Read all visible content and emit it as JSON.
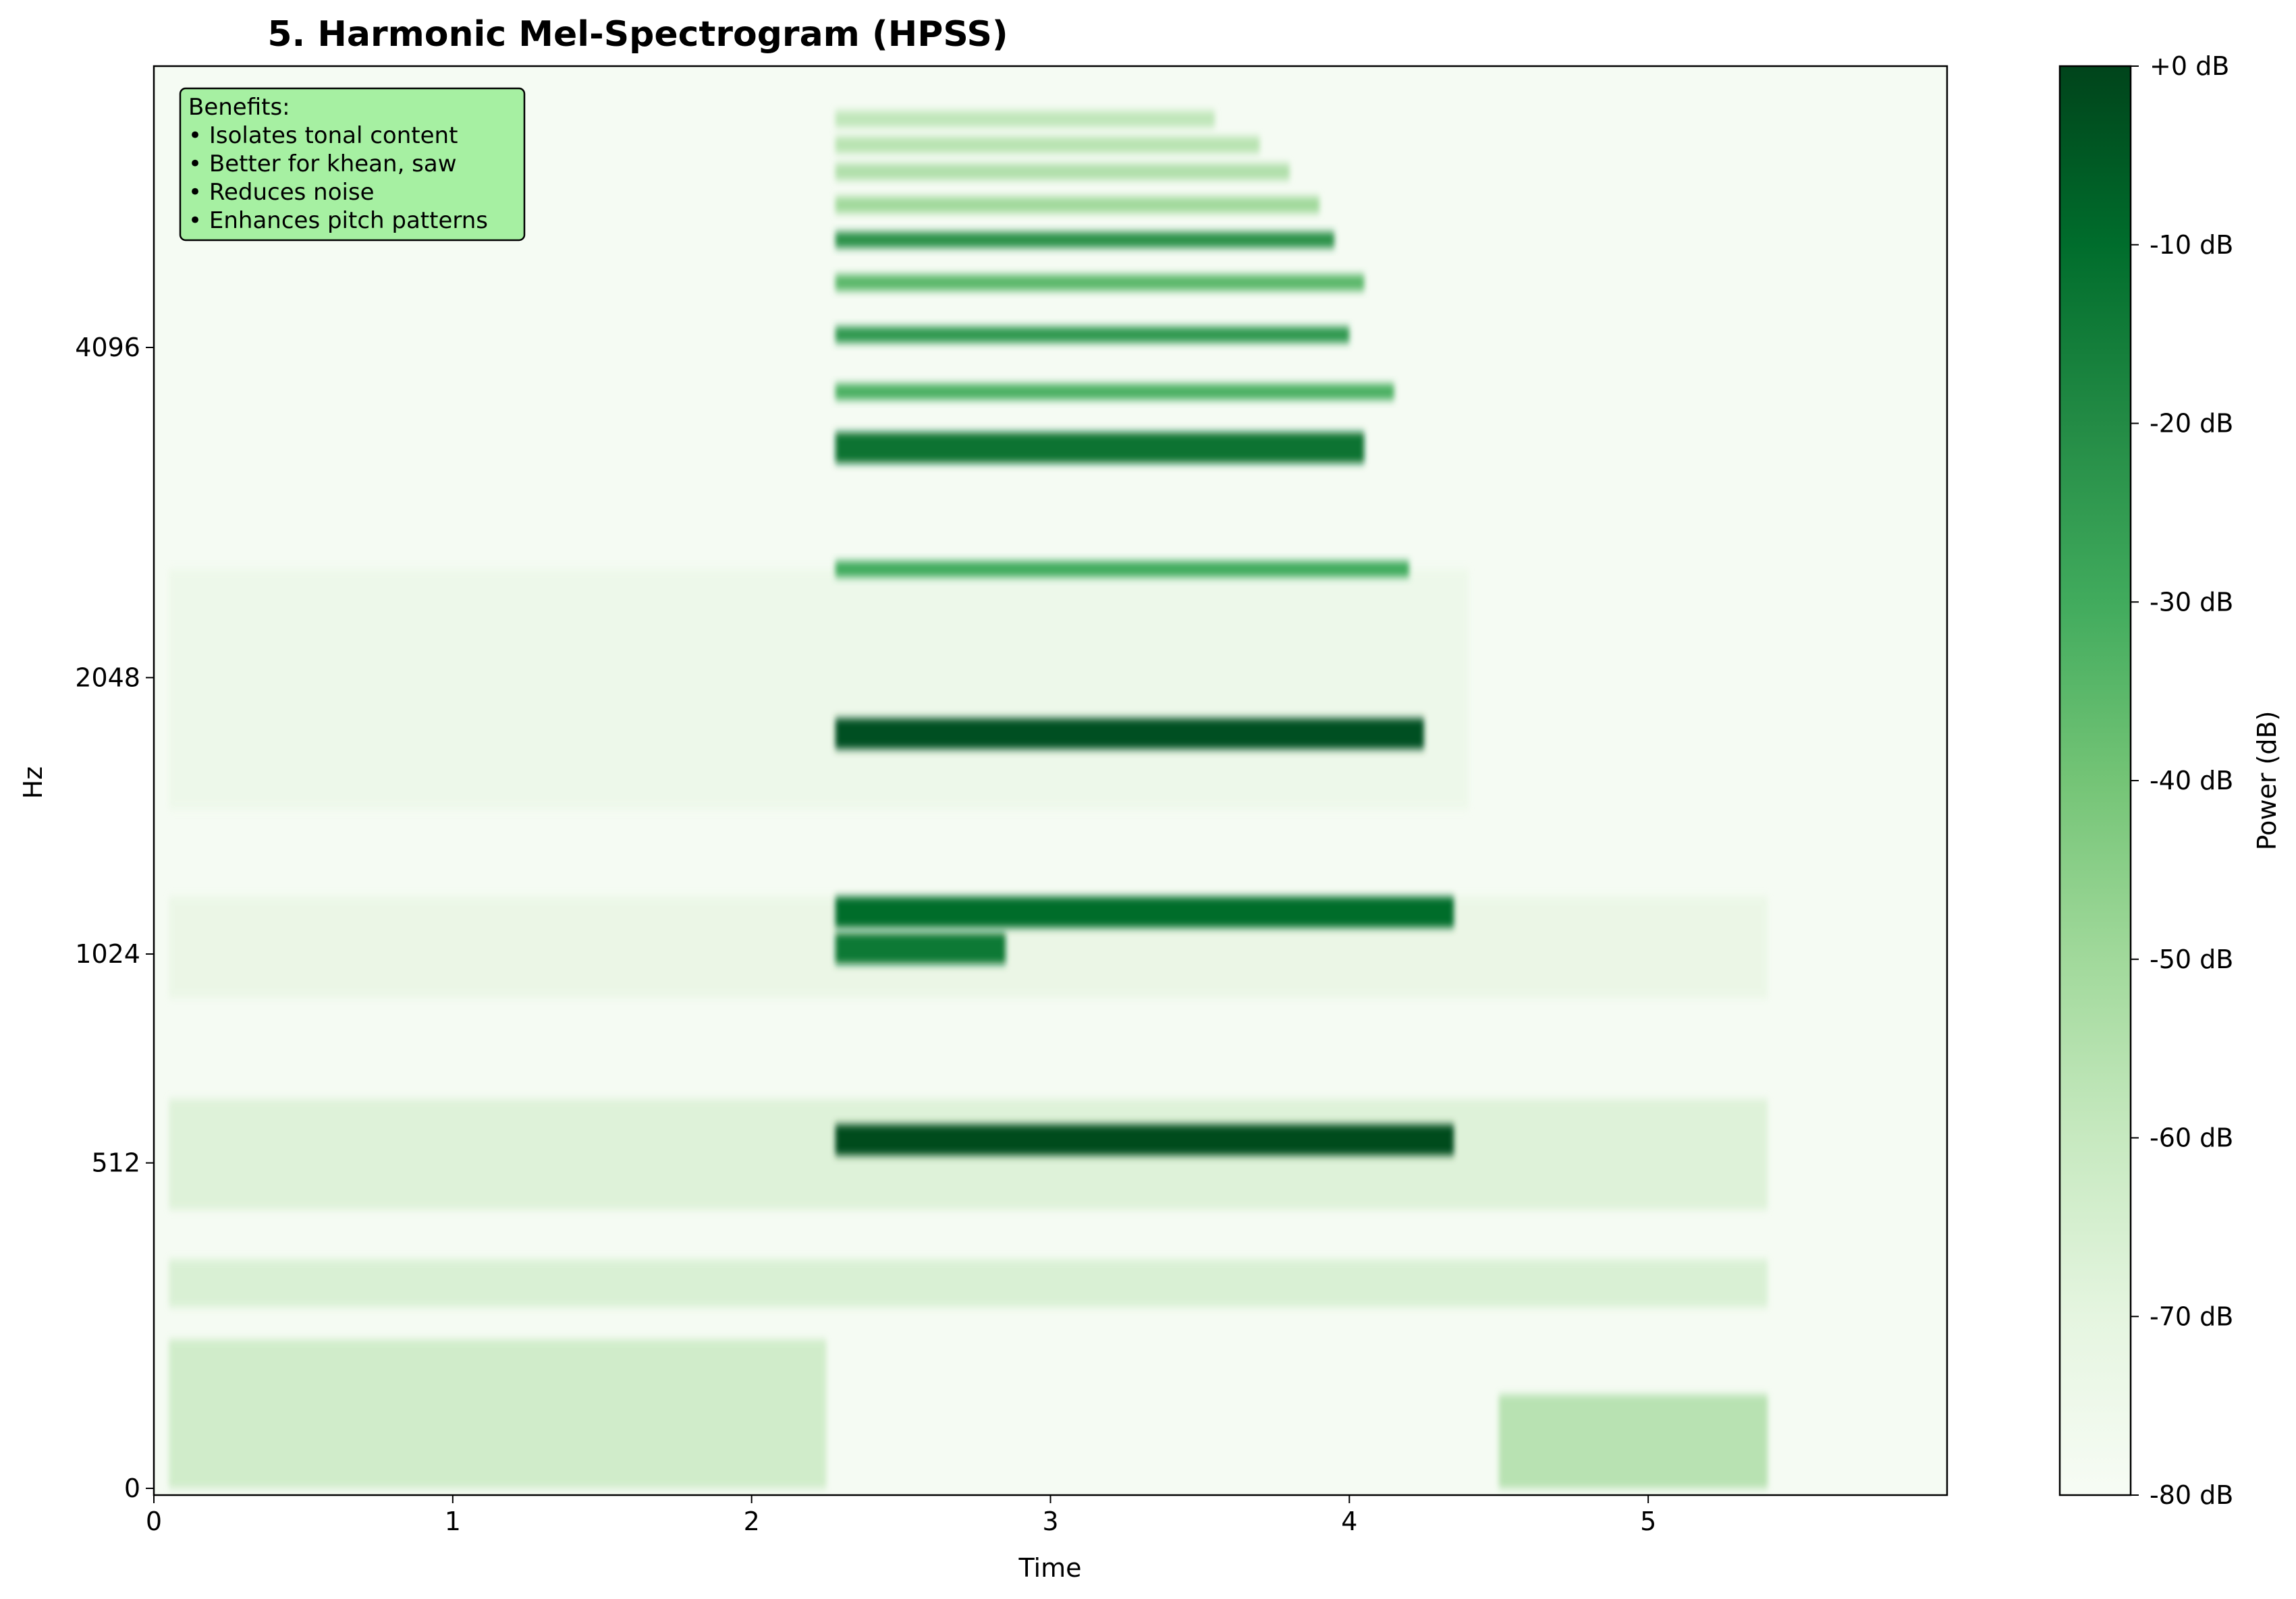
{
  "chart_data": {
    "type": "heatmap",
    "title": "5. Harmonic Mel-Spectrogram (HPSS)",
    "xlabel": "Time",
    "ylabel": "Hz",
    "xlim": [
      0,
      6.0
    ],
    "x_ticks": [
      0,
      1,
      2,
      3,
      4,
      5
    ],
    "y_scale": "mel",
    "y_ticks": [
      0,
      512,
      1024,
      2048,
      4096
    ],
    "grid": false,
    "colormap": "Greens",
    "colorbar": {
      "label": "Power (dB)",
      "range": [
        -80,
        0
      ],
      "ticks": [
        0,
        -10,
        -20,
        -30,
        -40,
        -50,
        -60,
        -70,
        -80
      ],
      "tick_labels": [
        "+0 dB",
        "-10 dB",
        "-20 dB",
        "-30 dB",
        "-40 dB",
        "-50 dB",
        "-60 dB",
        "-70 dB",
        "-80 dB"
      ]
    },
    "annotation": {
      "placement": "top-left",
      "lines": [
        "Benefits:",
        "• Isolates tonal content",
        "• Better for khean, saw",
        "• Reduces noise",
        "• Enhances pitch patterns"
      ]
    },
    "harmonic_bands": [
      {
        "freq_hz": 560,
        "t_start": 2.28,
        "t_end": 4.35,
        "level_db": -2
      },
      {
        "freq_hz": 1040,
        "t_start": 2.28,
        "t_end": 2.85,
        "level_db": -14
      },
      {
        "freq_hz": 1150,
        "t_start": 2.28,
        "t_end": 4.35,
        "level_db": -10
      },
      {
        "freq_hz": 1800,
        "t_start": 2.28,
        "t_end": 4.25,
        "level_db": -3
      },
      {
        "freq_hz": 2600,
        "t_start": 2.28,
        "t_end": 4.2,
        "level_db": -30
      },
      {
        "freq_hz": 3350,
        "t_start": 2.28,
        "t_end": 4.05,
        "level_db": -12
      },
      {
        "freq_hz": 3750,
        "t_start": 2.28,
        "t_end": 4.15,
        "level_db": -32
      },
      {
        "freq_hz": 4200,
        "t_start": 2.28,
        "t_end": 4.0,
        "level_db": -24
      },
      {
        "freq_hz": 4650,
        "t_start": 2.28,
        "t_end": 4.05,
        "level_db": -35
      },
      {
        "freq_hz": 5050,
        "t_start": 2.28,
        "t_end": 3.95,
        "level_db": -22
      },
      {
        "freq_hz": 5400,
        "t_start": 2.28,
        "t_end": 3.9,
        "level_db": -50
      },
      {
        "freq_hz": 5750,
        "t_start": 2.28,
        "t_end": 3.8,
        "level_db": -54
      },
      {
        "freq_hz": 6050,
        "t_start": 2.28,
        "t_end": 3.7,
        "level_db": -56
      },
      {
        "freq_hz": 6350,
        "t_start": 2.28,
        "t_end": 3.55,
        "level_db": -58
      }
    ],
    "noise_regions": [
      {
        "f_lo": 0,
        "f_hi": 200,
        "t_start": 0.05,
        "t_end": 2.25,
        "level_db": -60
      },
      {
        "f_lo": 0,
        "f_hi": 120,
        "t_start": 4.5,
        "t_end": 5.4,
        "level_db": -52
      },
      {
        "f_lo": 250,
        "f_hi": 330,
        "t_start": 0.05,
        "t_end": 5.4,
        "level_db": -64
      },
      {
        "f_lo": 420,
        "f_hi": 650,
        "t_start": 0.05,
        "t_end": 5.4,
        "level_db": -66
      },
      {
        "f_lo": 900,
        "f_hi": 1200,
        "t_start": 0.05,
        "t_end": 5.4,
        "level_db": -72
      },
      {
        "f_lo": 1500,
        "f_hi": 2600,
        "t_start": 0.05,
        "t_end": 4.4,
        "level_db": -74
      }
    ]
  }
}
